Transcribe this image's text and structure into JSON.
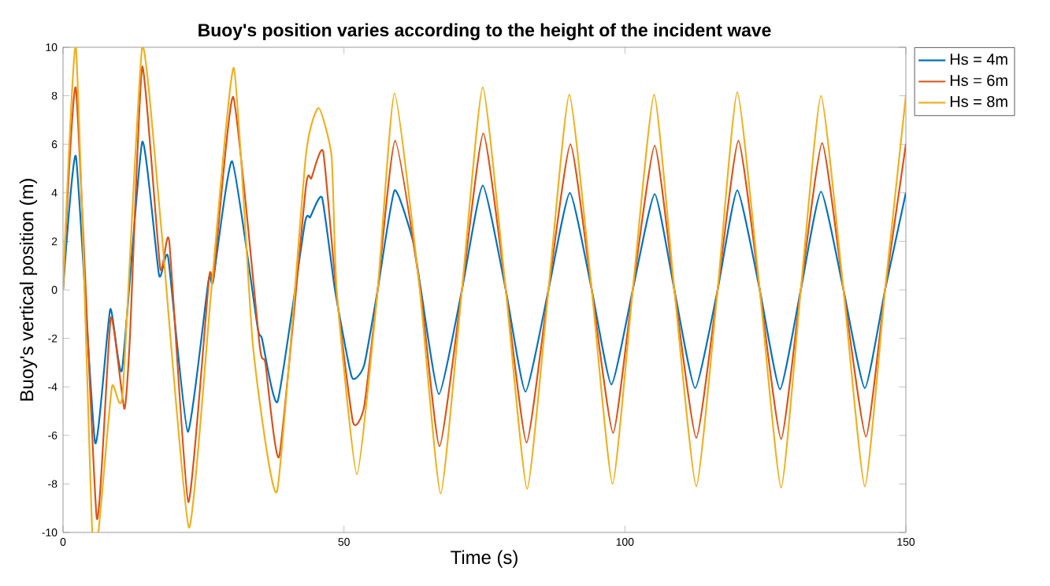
{
  "chart_data": {
    "type": "line",
    "title": "Buoy's position varies according to the height of the incident wave",
    "xlabel": "Time (s)",
    "ylabel": "Buoy's vertical position (m)",
    "xlim": [
      0,
      150
    ],
    "xticks": [
      0,
      50,
      100,
      150
    ],
    "ylim": [
      -10,
      10
    ],
    "yticks": [
      -10,
      -8,
      -6,
      -4,
      -2,
      0,
      2,
      4,
      6,
      8,
      10
    ],
    "grid": false,
    "legend": "top right",
    "marker": "none",
    "line_style": "solid",
    "series": [
      {
        "name": "Hs = 4m",
        "color": "#0072bd",
        "x": [
          0,
          2.3,
          5.7,
          8.4,
          10.5,
          14.1,
          17.1,
          18.7,
          22.2,
          25.9,
          26.7,
          30.1,
          34.6,
          35.4,
          38.2,
          43,
          44,
          46.1,
          48.4,
          51.4,
          53.6,
          56,
          59,
          62.3,
          63.7,
          66.9,
          71,
          74.7,
          78.8,
          82.3,
          86.4,
          90.2,
          94.1,
          97.6,
          101.4,
          105.3,
          108.8,
          112.5,
          116.5,
          120,
          124,
          127.6,
          131.3,
          134.9,
          138.9,
          142.7,
          146.3,
          150
        ],
        "values": [
          0,
          5.5,
          -6.3,
          -0.8,
          -3.3,
          6.1,
          0.6,
          1.35,
          -5.85,
          0.4,
          0.35,
          5.3,
          -1.5,
          -2.0,
          -4.6,
          2.7,
          3.0,
          3.8,
          0,
          -3.6,
          -3.1,
          0,
          4.1,
          2.0,
          0,
          -4.3,
          0,
          4.3,
          0,
          -4.2,
          0,
          4.0,
          0,
          -3.9,
          0,
          3.95,
          0,
          -4.05,
          0,
          4.1,
          0,
          -4.1,
          0,
          4.05,
          0,
          -4.05,
          0,
          4.0
        ]
      },
      {
        "name": "Hs = 6m",
        "color": "#d95319",
        "x": [
          0,
          2.3,
          6.0,
          8.5,
          10.9,
          11.9,
          14.1,
          17.3,
          18.9,
          22.3,
          26.0,
          26.8,
          30.3,
          35.0,
          36.0,
          38.5,
          43.2,
          44.2,
          46.3,
          48.6,
          51.6,
          53.6,
          56,
          59.1,
          63.6,
          67.0,
          71,
          74.8,
          78.8,
          82.5,
          86.4,
          90.3,
          94.1,
          97.9,
          101.4,
          105.3,
          108.8,
          112.7,
          116.5,
          120.2,
          124,
          127.8,
          131.3,
          135.1,
          138.9,
          142.9,
          146.3,
          150
        ],
        "values": [
          0,
          8.3,
          -9.4,
          -1.15,
          -4.9,
          -2.0,
          9.2,
          0.9,
          2.0,
          -8.75,
          0.5,
          0.5,
          7.95,
          -2.3,
          -3.0,
          -6.85,
          4.2,
          4.6,
          5.7,
          0,
          -5.45,
          -4.8,
          0,
          6.15,
          0,
          -6.45,
          0,
          6.45,
          0,
          -6.3,
          0,
          6.0,
          0,
          -5.9,
          0,
          5.95,
          0,
          -6.1,
          0,
          6.15,
          0,
          -6.15,
          0,
          6.05,
          0,
          -6.05,
          0,
          6.0
        ]
      },
      {
        "name": "Hs = 8m",
        "color": "#edb120",
        "x": [
          0,
          2.3,
          5.2,
          6.3,
          8.7,
          10.6,
          14.1,
          17.5,
          22.4,
          26.4,
          30.4,
          33.8,
          38.1,
          43.2,
          45.5,
          47.8,
          48.7,
          52.3,
          56,
          59,
          63.5,
          67.2,
          71,
          74.7,
          78.8,
          82.6,
          86.4,
          90.1,
          94.1,
          97.8,
          101.4,
          105.2,
          108.8,
          112.7,
          116.5,
          120,
          124,
          127.8,
          131.3,
          134.9,
          138.9,
          142.7,
          146.3,
          150
        ],
        "values": [
          0,
          10,
          -10,
          -10,
          -4.0,
          -4.3,
          10,
          2.5,
          -9.8,
          0,
          9.15,
          -2.3,
          -8.3,
          5.5,
          7.5,
          5.5,
          0,
          -7.6,
          0,
          8.1,
          0,
          -8.4,
          0,
          8.35,
          0,
          -8.2,
          0,
          8.05,
          0,
          -8.0,
          0,
          8.05,
          0,
          -8.1,
          0,
          8.15,
          0,
          -8.15,
          0,
          8.0,
          0,
          -8.1,
          0,
          8.0
        ]
      }
    ]
  }
}
